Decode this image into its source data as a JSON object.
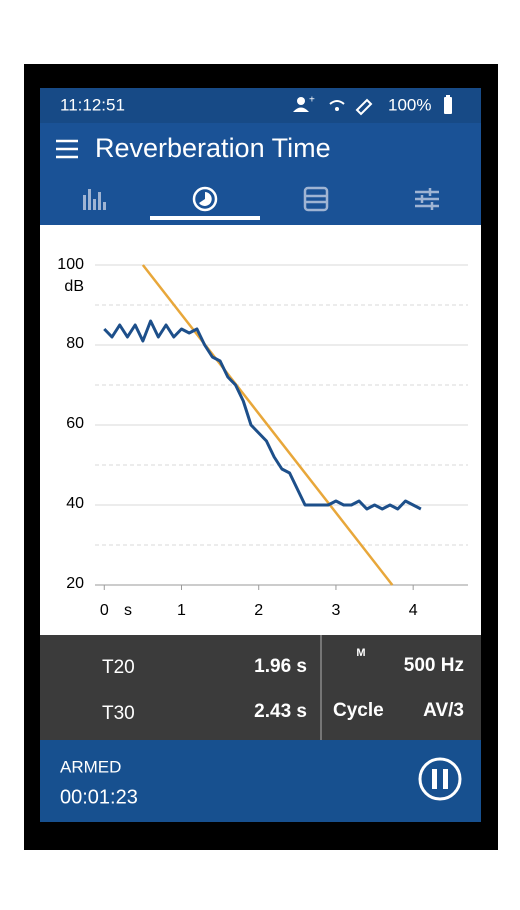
{
  "status_bar": {
    "time": "11:12:51",
    "battery": "100%"
  },
  "header": {
    "title": "Reverberation Time"
  },
  "chart_data": {
    "type": "line",
    "x_label": "s",
    "y_label": "dB",
    "xlim": [
      -0.12,
      4.71
    ],
    "ylim": [
      20,
      100
    ],
    "xticks": [
      0,
      1,
      2,
      3,
      4
    ],
    "yticks": [
      20,
      40,
      60,
      80,
      100
    ],
    "yminorticks": [
      30,
      50,
      70,
      90
    ],
    "grid": true,
    "series": [
      {
        "color": "#1d4f8a",
        "x": [
          0.0,
          0.1,
          0.2,
          0.3,
          0.4,
          0.5,
          0.6,
          0.7,
          0.8,
          0.9,
          1.0,
          1.1,
          1.2,
          1.3,
          1.4,
          1.5,
          1.6,
          1.7,
          1.8,
          1.9,
          2.0,
          2.1,
          2.2,
          2.3,
          2.4,
          2.5,
          2.6,
          2.7,
          2.8,
          2.9,
          3.0,
          3.1,
          3.2,
          3.3,
          3.4,
          3.5,
          3.6,
          3.7,
          3.8,
          3.9,
          4.0,
          4.1
        ],
        "values": [
          84,
          82,
          85,
          82,
          85,
          81,
          86,
          82,
          85,
          82,
          84,
          83,
          84,
          80,
          77,
          76,
          72,
          70,
          66,
          60,
          58,
          56,
          52,
          49,
          48,
          44,
          40,
          40,
          40,
          40,
          41,
          40,
          40,
          41,
          39,
          40,
          39,
          40,
          39,
          41,
          40,
          39
        ]
      },
      {
        "color": "#e8a73a",
        "x": [
          0.5,
          3.73
        ],
        "values": [
          100,
          20
        ]
      }
    ]
  },
  "results": {
    "t20_label": "T20",
    "t20": "1.96 s",
    "t30_label": "T30",
    "t30": "2.43 s",
    "mode": "M",
    "frequency": "500 Hz",
    "cycle_label": "Cycle",
    "cycle": "AV/3"
  },
  "footer": {
    "state": "ARMED",
    "elapsed": "00:01:23"
  }
}
